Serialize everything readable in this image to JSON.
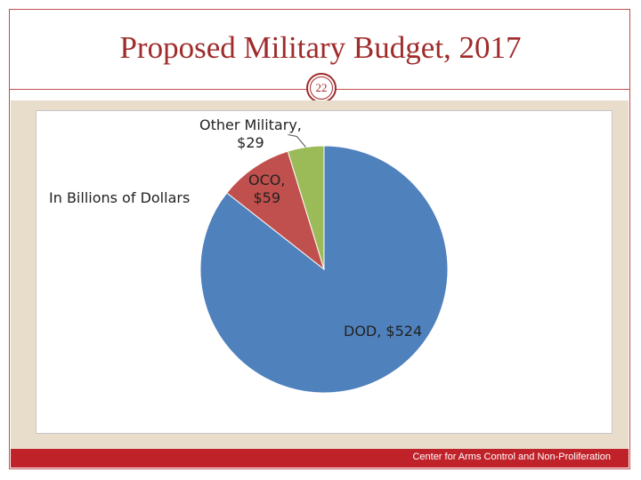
{
  "slide": {
    "title": "Proposed Military Budget, 2017",
    "page_number": "22",
    "credit": "Center for Arms Control and Non-Proliferation"
  },
  "chart_data": {
    "type": "pie",
    "title": "In Billions of Dollars",
    "slices": [
      {
        "label": "DOD",
        "value": 524,
        "display": "DOD, $524",
        "color": "#4f81bd"
      },
      {
        "label": "OCO",
        "value": 59,
        "display": "OCO, $59",
        "line1": "OCO,",
        "line2": "$59",
        "color": "#c0504d"
      },
      {
        "label": "Other Military",
        "value": 29,
        "display": "Other Military, $29",
        "line1": "Other Military,",
        "line2": "$29",
        "color": "#9bbb59"
      }
    ]
  },
  "colors": {
    "title": "#a02b2b",
    "frame": "#c0504d",
    "footer": "#c0222a",
    "background_band": "#e8dccb"
  }
}
